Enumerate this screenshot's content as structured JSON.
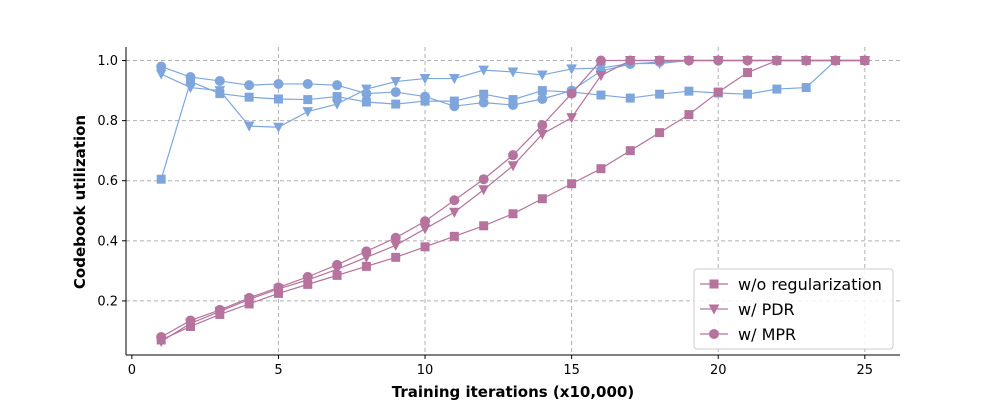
{
  "chart_data": {
    "type": "line",
    "xlabel": "Training iterations (x10,000)",
    "ylabel": "Codebook utilization",
    "xlim": [
      -0.2,
      26.2
    ],
    "ylim": [
      0.02,
      1.045
    ],
    "xticks": [
      0,
      5,
      10,
      15,
      20,
      25
    ],
    "xtick_labels": [
      "0",
      "5",
      "10",
      "15",
      "20",
      "25"
    ],
    "yticks": [
      0.2,
      0.4,
      0.6,
      0.8,
      1.0
    ],
    "ytick_labels": [
      "0.2",
      "0.4",
      "0.6",
      "0.8",
      "1.0"
    ],
    "grid": true,
    "legend_position": "lower-right",
    "x": [
      1,
      2,
      3,
      4,
      5,
      6,
      7,
      8,
      9,
      10,
      11,
      12,
      13,
      14,
      15,
      16,
      17,
      18,
      19,
      20,
      21,
      22,
      23,
      24,
      25
    ],
    "series": [
      {
        "name": "w/o regularization",
        "group": "pink",
        "marker": "square",
        "color": "#b5739d",
        "values": [
          0.07,
          0.115,
          0.155,
          0.19,
          0.225,
          0.255,
          0.285,
          0.315,
          0.345,
          0.38,
          0.415,
          0.45,
          0.49,
          0.54,
          0.59,
          0.64,
          0.7,
          0.76,
          0.82,
          0.895,
          0.96,
          1.0,
          1.0,
          1.0,
          1.0
        ]
      },
      {
        "name": "w/ PDR",
        "group": "pink",
        "marker": "triangle-down",
        "color": "#b5739d",
        "values": [
          0.065,
          0.125,
          0.165,
          0.205,
          0.24,
          0.27,
          0.305,
          0.345,
          0.385,
          0.44,
          0.495,
          0.57,
          0.65,
          0.755,
          0.81,
          0.95,
          1.0,
          1.0,
          1.0,
          1.0,
          1.0,
          1.0,
          1.0,
          1.0,
          1.0
        ]
      },
      {
        "name": "w/ MPR",
        "group": "pink",
        "marker": "circle",
        "color": "#b5739d",
        "values": [
          0.08,
          0.135,
          0.17,
          0.21,
          0.245,
          0.28,
          0.32,
          0.365,
          0.41,
          0.465,
          0.535,
          0.605,
          0.685,
          0.785,
          0.89,
          1.0,
          1.0,
          1.0,
          1.0,
          1.0,
          1.0,
          1.0,
          1.0,
          1.0,
          1.0
        ]
      },
      {
        "group": "blue",
        "marker": "square",
        "color": "#7fa6dc",
        "values": [
          0.605,
          0.93,
          0.89,
          0.878,
          0.872,
          0.87,
          0.88,
          0.862,
          0.855,
          0.865,
          0.865,
          0.888,
          0.87,
          0.9,
          0.895,
          0.885,
          0.875,
          0.888,
          0.898,
          0.892,
          0.888,
          0.905,
          0.91,
          1.0,
          1.0
        ]
      },
      {
        "group": "blue",
        "marker": "triangle-down",
        "color": "#7fa6dc",
        "values": [
          0.955,
          0.91,
          0.9,
          0.782,
          0.778,
          0.83,
          0.855,
          0.905,
          0.93,
          0.94,
          0.94,
          0.968,
          0.962,
          0.952,
          0.972,
          0.975,
          0.99,
          0.99,
          1.0,
          1.0,
          1.0,
          1.0,
          1.0,
          1.0,
          1.0
        ]
      },
      {
        "group": "blue",
        "marker": "circle",
        "color": "#7fa6dc",
        "values": [
          0.98,
          0.945,
          0.932,
          0.918,
          0.922,
          0.922,
          0.918,
          0.89,
          0.895,
          0.88,
          0.848,
          0.86,
          0.852,
          0.872,
          0.9,
          0.965,
          0.988,
          0.995,
          1.0,
          1.0,
          1.0,
          1.0,
          1.0,
          1.0,
          1.0
        ]
      }
    ],
    "legend": [
      {
        "label": "w/o regularization",
        "marker": "square",
        "color": "#b5739d"
      },
      {
        "label": "w/ PDR",
        "marker": "triangle-down",
        "color": "#b5739d"
      },
      {
        "label": "w/ MPR",
        "marker": "circle",
        "color": "#b5739d"
      }
    ]
  }
}
